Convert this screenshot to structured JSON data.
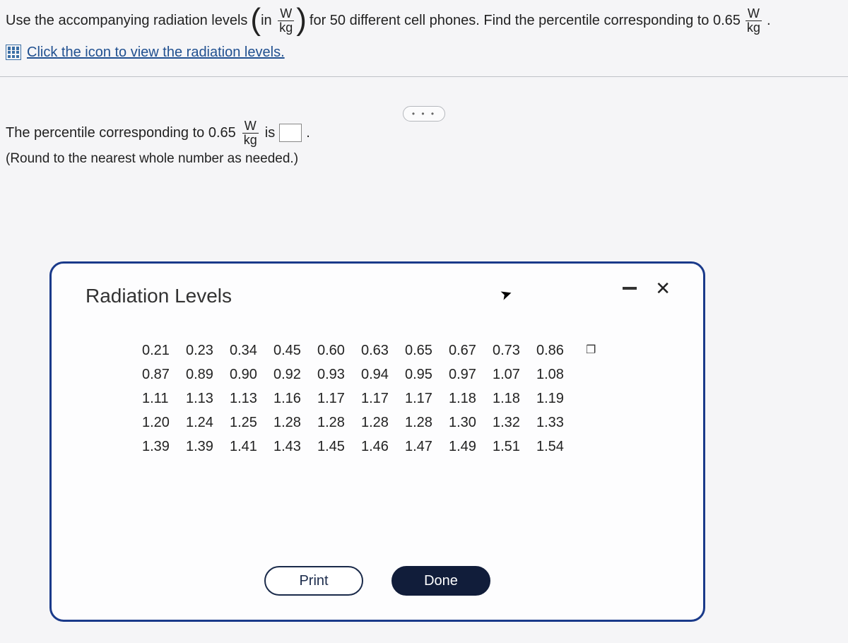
{
  "question": {
    "prefix": "Use the accompanying radiation levels",
    "paren_in": "in",
    "frac_num": "W",
    "frac_den": "kg",
    "mid": "for 50 different cell phones. Find the percentile corresponding to 0.65",
    "period": "."
  },
  "link": {
    "text": "Click the icon to view the radiation levels."
  },
  "collapse": "• • •",
  "answer": {
    "prefix": "The percentile corresponding to 0.65",
    "frac_num": "W",
    "frac_den": "kg",
    "is": "is",
    "period": ".",
    "hint": "(Round to the nearest whole number as needed.)"
  },
  "modal": {
    "title": "Radiation Levels",
    "close": "✕",
    "rows": [
      [
        "0.21",
        "0.23",
        "0.34",
        "0.45",
        "0.60",
        "0.63",
        "0.65",
        "0.67",
        "0.73",
        "0.86"
      ],
      [
        "0.87",
        "0.89",
        "0.90",
        "0.92",
        "0.93",
        "0.94",
        "0.95",
        "0.97",
        "1.07",
        "1.08"
      ],
      [
        "1.11",
        "1.13",
        "1.13",
        "1.16",
        "1.17",
        "1.17",
        "1.17",
        "1.18",
        "1.18",
        "1.19"
      ],
      [
        "1.20",
        "1.24",
        "1.25",
        "1.28",
        "1.28",
        "1.28",
        "1.28",
        "1.30",
        "1.32",
        "1.33"
      ],
      [
        "1.39",
        "1.39",
        "1.41",
        "1.43",
        "1.45",
        "1.46",
        "1.47",
        "1.49",
        "1.51",
        "1.54"
      ]
    ],
    "copy_glyph": "❐",
    "print": "Print",
    "done": "Done"
  },
  "style": {
    "modal_border_color": "#1a3a8a",
    "link_color": "#205090",
    "done_bg": "#111d3a"
  }
}
